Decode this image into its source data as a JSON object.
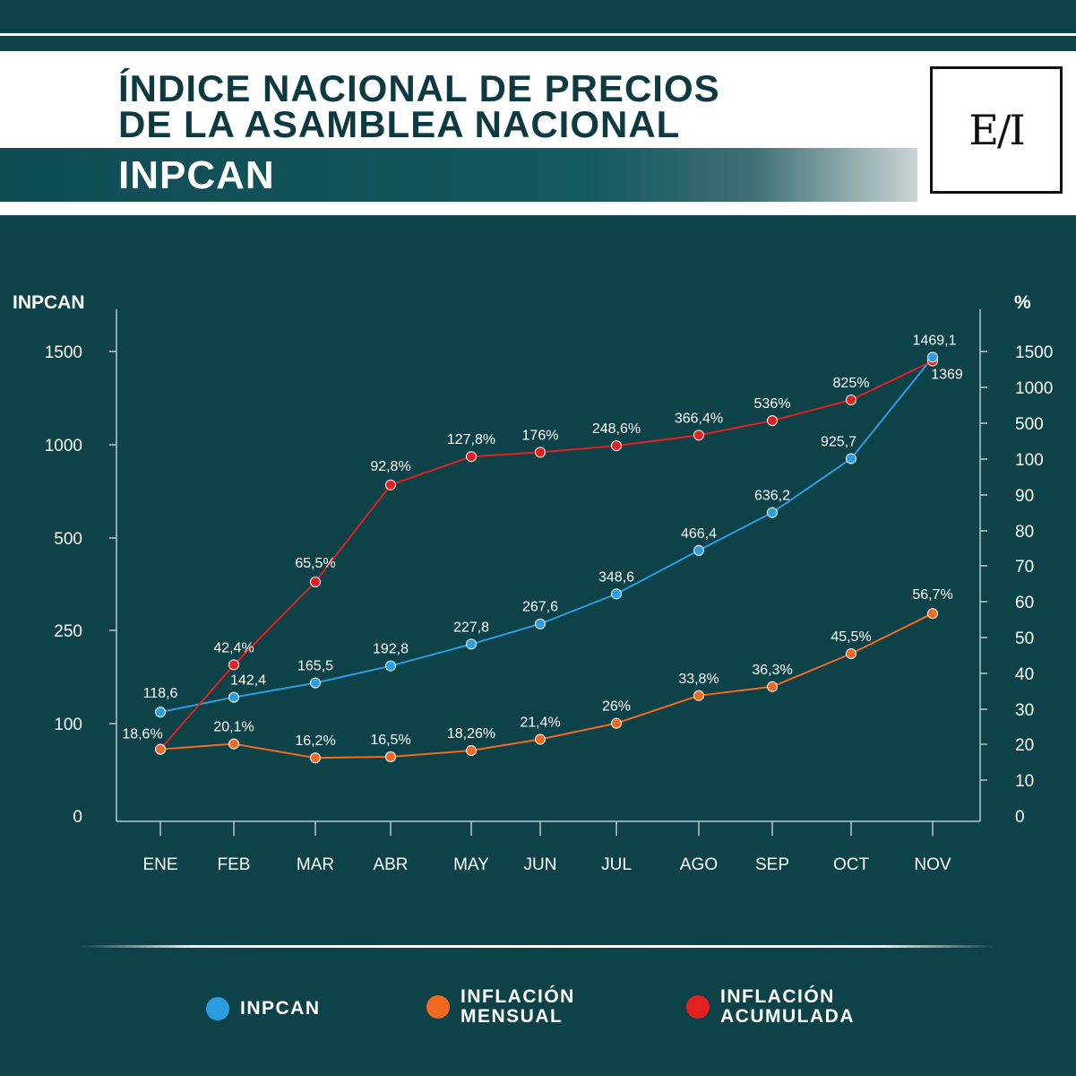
{
  "header": {
    "title_line1": "ÍNDICE NACIONAL DE PRECIOS",
    "title_line2": "DE LA ASAMBLEA NACIONAL",
    "subtitle": "INPCAN",
    "logo_text": "E/I"
  },
  "colors": {
    "background": "#0d4248",
    "inpcan": "#2b9ee2",
    "mensual": "#f26a21",
    "acumulada": "#e3201f"
  },
  "legend": [
    {
      "label": "INPCAN",
      "color": "#2b9ee2"
    },
    {
      "label": "INFLACIÓN MENSUAL",
      "color": "#f26a21"
    },
    {
      "label": "INFLACIÓN ACUMULADA",
      "color": "#e3201f"
    }
  ],
  "chart_data": {
    "type": "line",
    "title": "",
    "categories": [
      "ENE",
      "FEB",
      "MAR",
      "ABR",
      "MAY",
      "JUN",
      "JUL",
      "AGO",
      "SEP",
      "OCT",
      "NOV"
    ],
    "left_axis": {
      "label": "INPCAN",
      "ticks": [
        "0",
        "100",
        "250",
        "500",
        "1000",
        "1500"
      ],
      "tick_values": [
        0,
        100,
        250,
        500,
        1000,
        1500
      ],
      "scale": "non-linear (evenly spaced ticks)"
    },
    "right_axis": {
      "label": "%",
      "ticks": [
        "0",
        "10",
        "20",
        "30",
        "40",
        "50",
        "60",
        "70",
        "80",
        "90",
        "100",
        "500",
        "1000",
        "1500"
      ],
      "tick_values": [
        0,
        10,
        20,
        30,
        40,
        50,
        60,
        70,
        80,
        90,
        100,
        500,
        1000,
        1500
      ],
      "scale": "non-linear (evenly spaced ticks)"
    },
    "series": [
      {
        "name": "INPCAN",
        "axis": "left",
        "values": [
          118.6,
          142.4,
          165.5,
          192.8,
          227.8,
          267.6,
          348.6,
          466.4,
          636.2,
          925.7,
          1469.1
        ],
        "labels": [
          "118,6",
          "142,4",
          "165,5",
          "192,8",
          "227,8",
          "267,6",
          "348,6",
          "466,4",
          "636,2",
          "925,7",
          "1469,1"
        ]
      },
      {
        "name": "INFLACIÓN MENSUAL",
        "axis": "right",
        "values": [
          18.6,
          20.1,
          16.2,
          16.5,
          18.26,
          21.4,
          26,
          33.8,
          36.3,
          45.5,
          56.7
        ],
        "labels": [
          "18,6%",
          "20,1%",
          "16,2%",
          "16,5%",
          "18,26%",
          "21,4%",
          "26%",
          "33,8%",
          "36,3%",
          "45,5%",
          "56,7%"
        ]
      },
      {
        "name": "INFLACIÓN ACUMULADA",
        "axis": "right",
        "values": [
          18.6,
          42.4,
          65.5,
          92.8,
          127.8,
          176,
          248.6,
          366.4,
          536,
          825,
          1369
        ],
        "labels": [
          "",
          "42,4%",
          "65,5%",
          "92,8%",
          "127,8%",
          "176%",
          "248,6%",
          "366,4%",
          "536%",
          "825%",
          "1369"
        ]
      }
    ],
    "grid": false,
    "legend_position": "bottom"
  }
}
